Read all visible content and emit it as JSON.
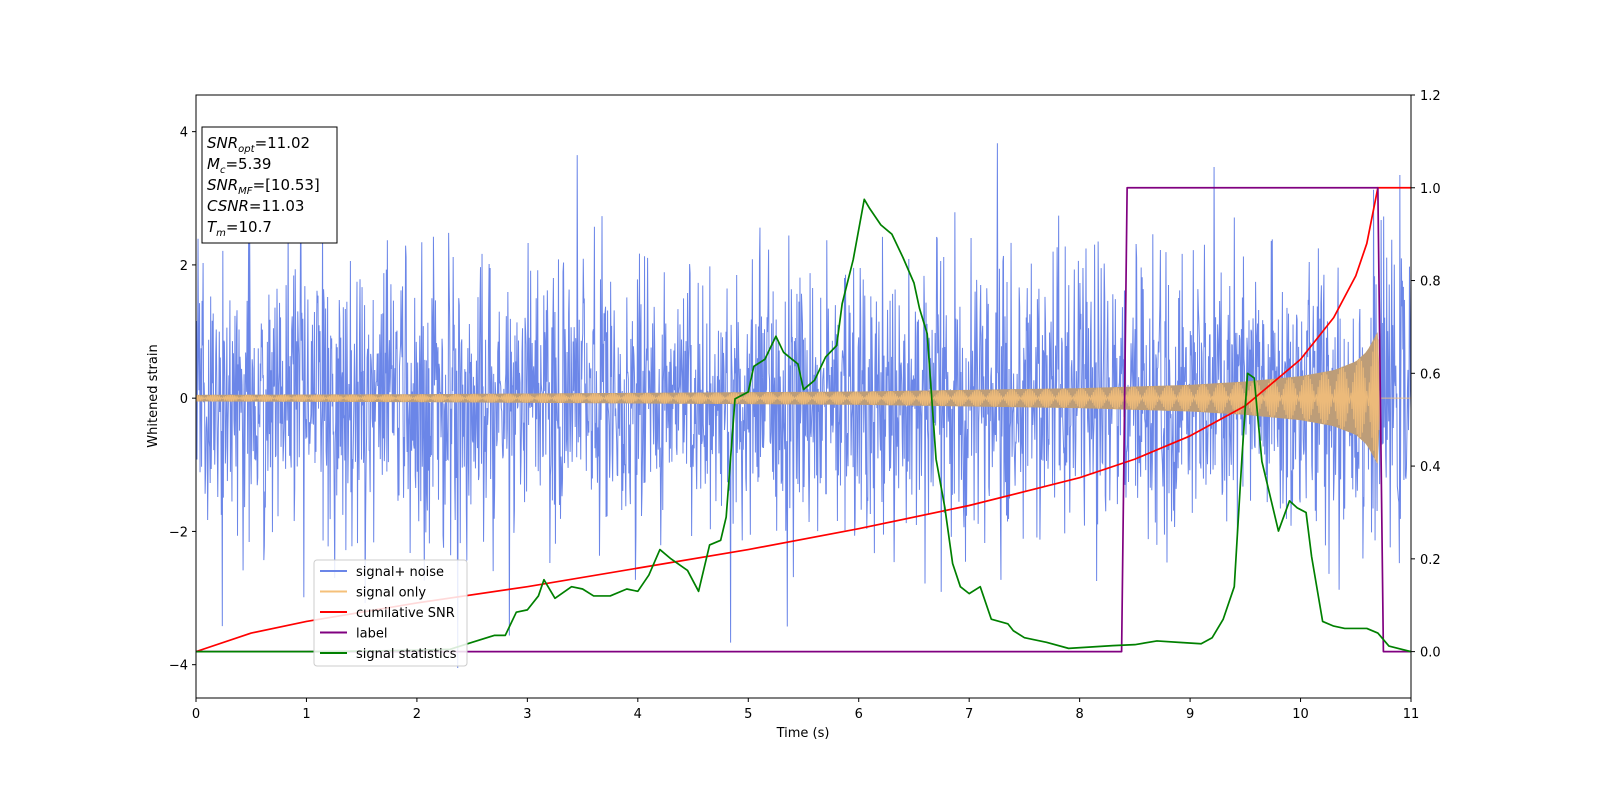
{
  "chart_data": {
    "type": "line",
    "title": "",
    "xlabel": "Time (s)",
    "ylabel": "Whitened strain",
    "y2label": "",
    "xlim": [
      0,
      11
    ],
    "ylim": [
      -4.5,
      4.55
    ],
    "y2lim": [
      -0.1,
      1.2
    ],
    "x_ticks": [
      0,
      1,
      2,
      3,
      4,
      5,
      6,
      7,
      8,
      9,
      10,
      11
    ],
    "x_tick_labels": [
      "0",
      "1",
      "2",
      "3",
      "4",
      "5",
      "6",
      "7",
      "8",
      "9",
      "10",
      "11"
    ],
    "y_ticks": [
      -4,
      -2,
      0,
      2,
      4
    ],
    "y_tick_labels": [
      "−4",
      "−2",
      "0",
      "2",
      "4"
    ],
    "y2_ticks": [
      0.0,
      0.2,
      0.4,
      0.6,
      0.8,
      1.0,
      1.2
    ],
    "y2_tick_labels": [
      "0.0",
      "0.2",
      "0.4",
      "0.6",
      "0.8",
      "1.0",
      "1.2"
    ],
    "grid": false,
    "legend_position": "lower-left",
    "info_box": {
      "lines": [
        {
          "main": "SNR",
          "sub": "opt",
          "rest": "=11.02"
        },
        {
          "main": "M",
          "sub": "c",
          "rest": "=5.39"
        },
        {
          "main": "SNR",
          "sub": "MF",
          "rest": "=[10.53]"
        },
        {
          "main": "CSNR",
          "sub": "",
          "rest": "=11.03"
        },
        {
          "main": "T",
          "sub": "m",
          "rest": "=10.7"
        }
      ]
    },
    "series": [
      {
        "name": "signal+ noise",
        "axis": "left",
        "color": "#6b86e8",
        "style": "noise",
        "x_range": [
          0,
          11
        ],
        "std": 1.0,
        "envelope_max": 4.15,
        "envelope_min": -4.05
      },
      {
        "name": "signal only",
        "axis": "left",
        "color": "#f5c07a",
        "fill_color": "#bd9d78",
        "style": "chirp",
        "t_merge": 10.7,
        "amplitude_points": [
          [
            0,
            0.05
          ],
          [
            2,
            0.06
          ],
          [
            4,
            0.08
          ],
          [
            6,
            0.1
          ],
          [
            8,
            0.15
          ],
          [
            9,
            0.2
          ],
          [
            9.5,
            0.25
          ],
          [
            10,
            0.33
          ],
          [
            10.3,
            0.42
          ],
          [
            10.5,
            0.55
          ],
          [
            10.6,
            0.7
          ],
          [
            10.7,
            1.0
          ],
          [
            10.72,
            0.0
          ],
          [
            11,
            0.0
          ]
        ]
      },
      {
        "name": "cumilative SNR",
        "axis": "right",
        "color": "#ff0000",
        "style": "line",
        "points": [
          [
            0,
            0.0
          ],
          [
            0.5,
            0.04
          ],
          [
            1,
            0.065
          ],
          [
            2,
            0.105
          ],
          [
            3,
            0.14
          ],
          [
            4,
            0.18
          ],
          [
            5,
            0.22
          ],
          [
            6,
            0.265
          ],
          [
            7,
            0.315
          ],
          [
            8,
            0.375
          ],
          [
            8.5,
            0.415
          ],
          [
            9,
            0.465
          ],
          [
            9.5,
            0.53
          ],
          [
            10,
            0.63
          ],
          [
            10.3,
            0.72
          ],
          [
            10.5,
            0.81
          ],
          [
            10.6,
            0.88
          ],
          [
            10.7,
            1.0
          ],
          [
            11,
            1.0
          ]
        ]
      },
      {
        "name": "label",
        "axis": "right",
        "color": "#800080",
        "style": "line",
        "points": [
          [
            0,
            0.0
          ],
          [
            8.38,
            0.0
          ],
          [
            8.43,
            1.0
          ],
          [
            10.7,
            1.0
          ],
          [
            10.75,
            0.0
          ],
          [
            11,
            0.0
          ]
        ]
      },
      {
        "name": "signal statistics",
        "axis": "right",
        "color": "#008000",
        "style": "line",
        "points": [
          [
            0,
            0.0
          ],
          [
            0.5,
            0.0
          ],
          [
            1,
            0.0
          ],
          [
            1.5,
            0.001
          ],
          [
            2,
            0.003
          ],
          [
            2.3,
            0.005
          ],
          [
            2.5,
            0.02
          ],
          [
            2.7,
            0.035
          ],
          [
            2.8,
            0.035
          ],
          [
            2.9,
            0.085
          ],
          [
            3.0,
            0.09
          ],
          [
            3.1,
            0.12
          ],
          [
            3.15,
            0.155
          ],
          [
            3.25,
            0.115
          ],
          [
            3.4,
            0.14
          ],
          [
            3.5,
            0.135
          ],
          [
            3.6,
            0.12
          ],
          [
            3.75,
            0.12
          ],
          [
            3.9,
            0.135
          ],
          [
            4.0,
            0.13
          ],
          [
            4.1,
            0.165
          ],
          [
            4.2,
            0.22
          ],
          [
            4.3,
            0.2
          ],
          [
            4.45,
            0.175
          ],
          [
            4.55,
            0.13
          ],
          [
            4.65,
            0.23
          ],
          [
            4.75,
            0.24
          ],
          [
            4.8,
            0.29
          ],
          [
            4.88,
            0.545
          ],
          [
            5.0,
            0.56
          ],
          [
            5.05,
            0.615
          ],
          [
            5.15,
            0.63
          ],
          [
            5.25,
            0.68
          ],
          [
            5.32,
            0.645
          ],
          [
            5.45,
            0.62
          ],
          [
            5.5,
            0.565
          ],
          [
            5.6,
            0.585
          ],
          [
            5.7,
            0.635
          ],
          [
            5.8,
            0.66
          ],
          [
            5.85,
            0.75
          ],
          [
            5.95,
            0.845
          ],
          [
            6.05,
            0.975
          ],
          [
            6.1,
            0.955
          ],
          [
            6.2,
            0.92
          ],
          [
            6.3,
            0.9
          ],
          [
            6.4,
            0.85
          ],
          [
            6.5,
            0.795
          ],
          [
            6.55,
            0.74
          ],
          [
            6.62,
            0.685
          ],
          [
            6.7,
            0.415
          ],
          [
            6.78,
            0.31
          ],
          [
            6.85,
            0.19
          ],
          [
            6.92,
            0.14
          ],
          [
            7.0,
            0.125
          ],
          [
            7.1,
            0.14
          ],
          [
            7.2,
            0.07
          ],
          [
            7.35,
            0.06
          ],
          [
            7.4,
            0.045
          ],
          [
            7.5,
            0.03
          ],
          [
            7.7,
            0.02
          ],
          [
            7.9,
            0.007
          ],
          [
            8.1,
            0.01
          ],
          [
            8.3,
            0.013
          ],
          [
            8.5,
            0.015
          ],
          [
            8.7,
            0.023
          ],
          [
            8.9,
            0.02
          ],
          [
            9.1,
            0.017
          ],
          [
            9.2,
            0.03
          ],
          [
            9.3,
            0.07
          ],
          [
            9.4,
            0.14
          ],
          [
            9.47,
            0.42
          ],
          [
            9.52,
            0.6
          ],
          [
            9.58,
            0.59
          ],
          [
            9.65,
            0.41
          ],
          [
            9.72,
            0.34
          ],
          [
            9.8,
            0.26
          ],
          [
            9.9,
            0.325
          ],
          [
            9.97,
            0.31
          ],
          [
            10.05,
            0.3
          ],
          [
            10.1,
            0.205
          ],
          [
            10.2,
            0.065
          ],
          [
            10.3,
            0.055
          ],
          [
            10.4,
            0.05
          ],
          [
            10.5,
            0.05
          ],
          [
            10.6,
            0.05
          ],
          [
            10.7,
            0.04
          ],
          [
            10.8,
            0.012
          ],
          [
            11,
            0.0
          ]
        ]
      }
    ]
  }
}
